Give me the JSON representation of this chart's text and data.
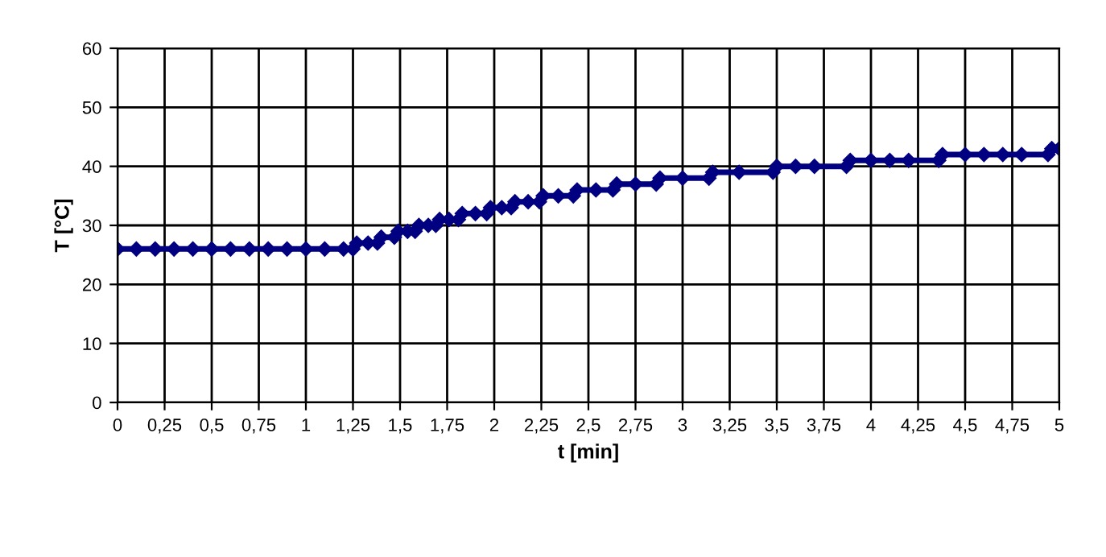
{
  "chart_data": {
    "type": "line",
    "xlabel": "t [min]",
    "ylabel": "T [°C]",
    "series": [
      {
        "color": "#000080",
        "x": [
          0,
          0.1,
          0.2,
          0.3,
          0.4,
          0.5,
          0.6,
          0.7,
          0.8,
          0.9,
          1.0,
          1.1,
          1.2,
          1.25,
          1.27,
          1.33,
          1.38,
          1.4,
          1.47,
          1.49,
          1.54,
          1.58,
          1.6,
          1.65,
          1.69,
          1.71,
          1.76,
          1.81,
          1.83,
          1.9,
          1.96,
          1.98,
          2.04,
          2.09,
          2.11,
          2.18,
          2.24,
          2.26,
          2.34,
          2.42,
          2.44,
          2.54,
          2.63,
          2.65,
          2.75,
          2.86,
          2.88,
          3.0,
          3.14,
          3.16,
          3.3,
          3.48,
          3.5,
          3.6,
          3.7,
          3.87,
          3.89,
          4.0,
          4.1,
          4.2,
          4.36,
          4.38,
          4.5,
          4.6,
          4.7,
          4.8,
          4.94,
          4.96,
          5.0
        ],
        "values": [
          26,
          26,
          26,
          26,
          26,
          26,
          26,
          26,
          26,
          26,
          26,
          26,
          26,
          26,
          27,
          27,
          27,
          28,
          28,
          29,
          29,
          29,
          30,
          30,
          30,
          31,
          31,
          31,
          32,
          32,
          32,
          33,
          33,
          33,
          34,
          34,
          34,
          35,
          35,
          35,
          36,
          36,
          36,
          37,
          37,
          37,
          38,
          38,
          38,
          39,
          39,
          39,
          40,
          40,
          40,
          40,
          41,
          41,
          41,
          41,
          41,
          42,
          42,
          42,
          42,
          42,
          42,
          43,
          43
        ]
      }
    ],
    "xlim": [
      0,
      5
    ],
    "xticks": [
      0,
      {
        "value": 0.25,
        "label": "0,25"
      },
      {
        "value": 0.5,
        "label": "0,5"
      },
      {
        "value": 0.75,
        "label": "0,75"
      },
      1,
      {
        "value": 1.25,
        "label": "1,25"
      },
      {
        "value": 1.5,
        "label": "1,5"
      },
      {
        "value": 1.75,
        "label": "1,75"
      },
      2,
      {
        "value": 2.25,
        "label": "2,25"
      },
      {
        "value": 2.5,
        "label": "2,5"
      },
      {
        "value": 2.75,
        "label": "2,75"
      },
      3,
      {
        "value": 3.25,
        "label": "3,25"
      },
      {
        "value": 3.5,
        "label": "3,5"
      },
      {
        "value": 3.75,
        "label": "3,75"
      },
      4,
      {
        "value": 4.25,
        "label": "4,25"
      },
      {
        "value": 4.5,
        "label": "4,5"
      },
      {
        "value": 4.75,
        "label": "4,75"
      },
      5
    ],
    "ylim": [
      0,
      60
    ],
    "yticks": [
      0,
      10,
      20,
      30,
      40,
      50,
      60
    ],
    "grid": true,
    "marker": "diamond",
    "line_style": "solid"
  }
}
